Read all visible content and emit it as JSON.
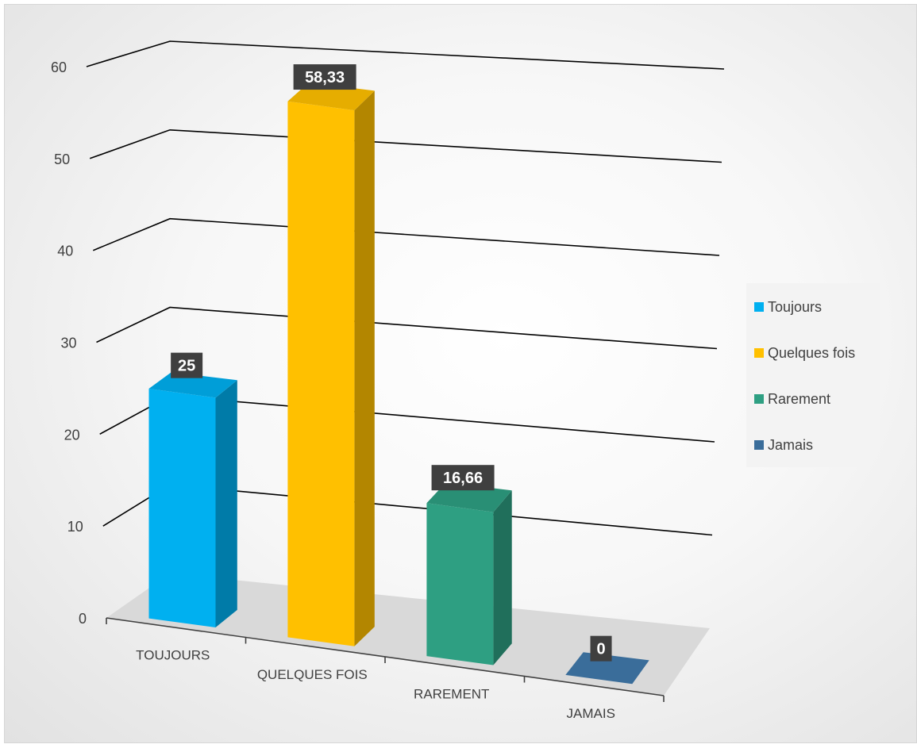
{
  "chart_data": {
    "type": "bar",
    "title": "",
    "xlabel": "",
    "ylabel": "",
    "categories": [
      "TOUJOURS",
      "QUELQUES FOIS",
      "RAREMENT",
      "JAMAIS"
    ],
    "values": [
      25,
      58.33,
      16.66,
      0
    ],
    "data_labels": [
      "25",
      "58,33",
      "16,66",
      "0"
    ],
    "ylim": [
      0,
      60
    ],
    "y_ticks": [
      0,
      10,
      20,
      30,
      40,
      50,
      60
    ],
    "grid": true,
    "style": "3d-column",
    "legend": {
      "position": "right",
      "entries": [
        "Toujours",
        "Quelques fois",
        "Rarement",
        "Jamais"
      ]
    },
    "colors": [
      "#00b0f0",
      "#ffc000",
      "#2e9f82",
      "#3a6d9a"
    ]
  }
}
